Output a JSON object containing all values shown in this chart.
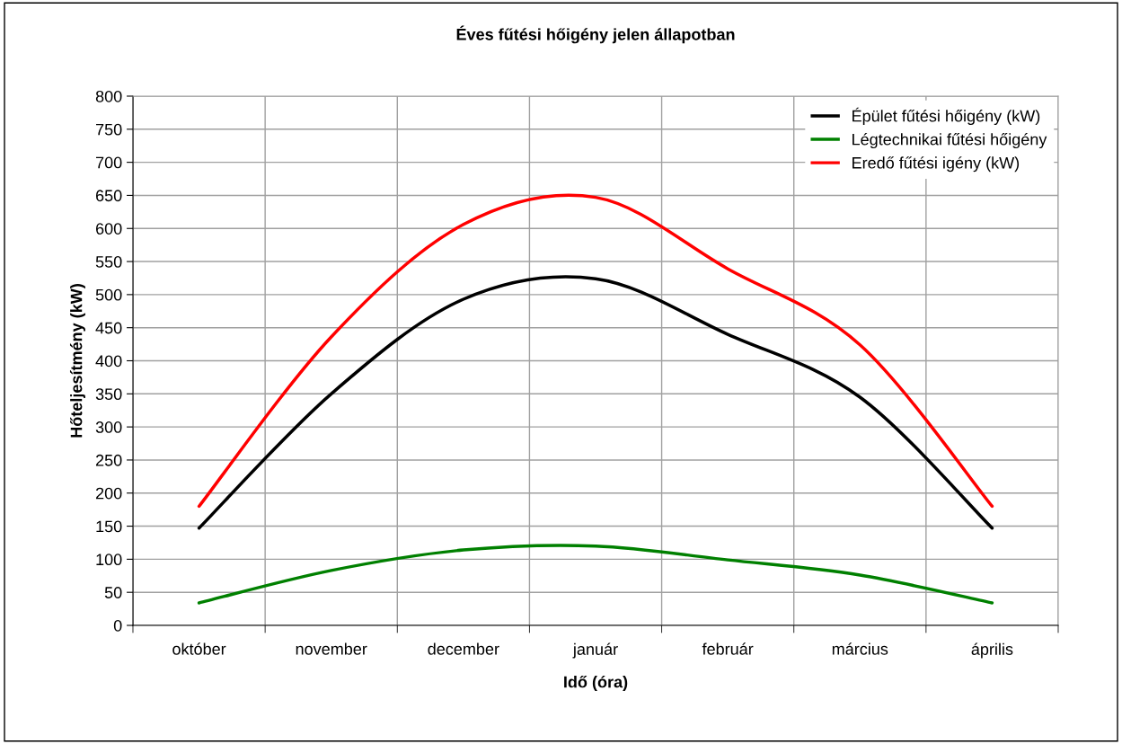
{
  "chart_data": {
    "type": "line",
    "title": "Éves fűtési hőigény jelen állapotban",
    "xlabel": "Idő (óra)",
    "ylabel": "Hőteljesítmény (kW)",
    "categories": [
      "október",
      "november",
      "december",
      "január",
      "február",
      "március",
      "április"
    ],
    "series": [
      {
        "name": "Épület fűtési hőigény (kW)",
        "color": "#000000",
        "values": [
          147,
          350,
          493,
          524,
          440,
          345,
          147
        ]
      },
      {
        "name": "Légtechnikai fűtési hőigény",
        "color": "#008000",
        "values": [
          34,
          83,
          114,
          120,
          99,
          76,
          34
        ]
      },
      {
        "name": "Eredő fűtési igény (kW)",
        "color": "#ff0000",
        "values": [
          180,
          436,
          606,
          647,
          539,
          424,
          180
        ]
      }
    ],
    "ylim": [
      0,
      800
    ],
    "yticks": [
      0,
      50,
      100,
      150,
      200,
      250,
      300,
      350,
      400,
      450,
      500,
      550,
      600,
      650,
      700,
      750,
      800
    ],
    "grid": true,
    "legend": "top right",
    "marker": "none",
    "line_style": "solid"
  }
}
